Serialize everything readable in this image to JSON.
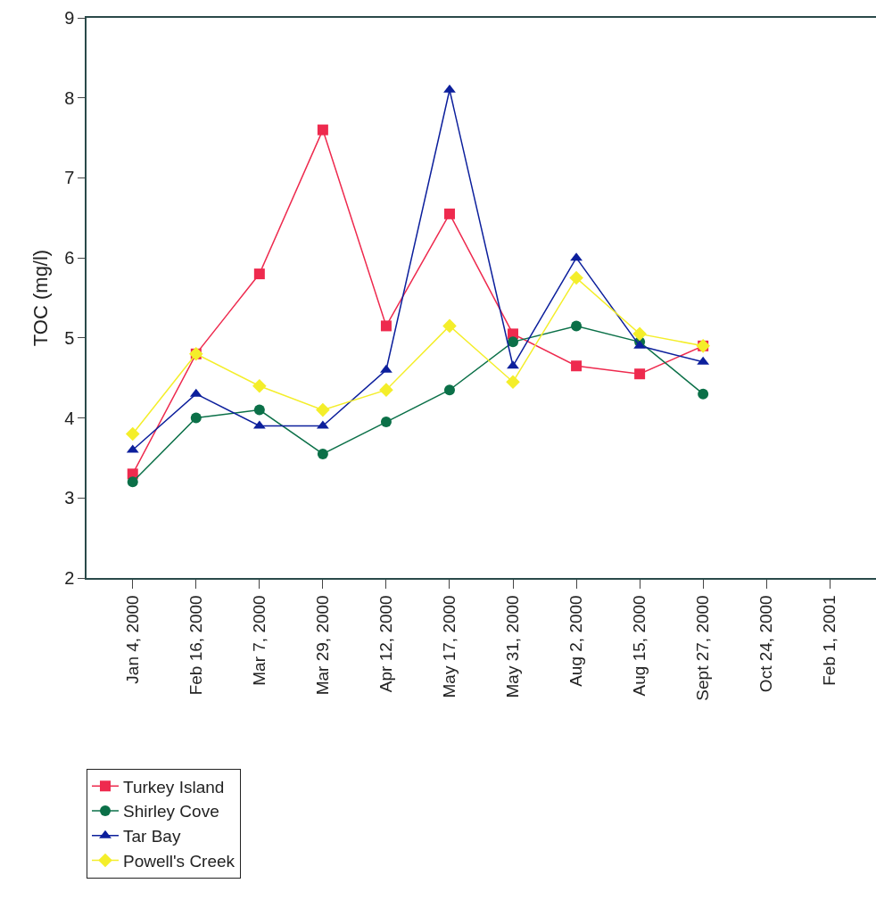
{
  "chart_data": {
    "type": "line",
    "ylabel": "TOC (mg/l)",
    "categories": [
      "Jan 4, 2000",
      "Feb 16, 2000",
      "Mar 7, 2000",
      "Mar 29, 2000",
      "Apr 12, 2000",
      "May 17, 2000",
      "May 31, 2000",
      "Aug 2, 2000",
      "Aug 15, 2000",
      "Sept 27, 2000",
      "Oct 24, 2000",
      "Feb 1, 2001"
    ],
    "series": [
      {
        "name": "Turkey Island",
        "color": "#ee2a4e",
        "marker": "square",
        "values": [
          3.3,
          4.8,
          5.8,
          7.6,
          5.15,
          6.55,
          5.05,
          4.65,
          4.55,
          4.9,
          null,
          null
        ]
      },
      {
        "name": "Shirley Cove",
        "color": "#0b7048",
        "marker": "circle",
        "values": [
          3.2,
          4.0,
          4.1,
          3.55,
          3.95,
          4.35,
          4.95,
          5.15,
          4.95,
          4.3,
          null,
          null
        ]
      },
      {
        "name": "Tar Bay",
        "color": "#0c1f9c",
        "marker": "triangle",
        "values": [
          3.6,
          4.3,
          3.9,
          3.9,
          4.6,
          8.1,
          4.65,
          6.0,
          4.9,
          4.7,
          null,
          null
        ]
      },
      {
        "name": "Powell's Creek",
        "color": "#f4ee2a",
        "marker": "diamond",
        "values": [
          3.8,
          4.8,
          4.4,
          4.1,
          4.35,
          5.15,
          4.45,
          5.75,
          5.05,
          4.9,
          null,
          null
        ]
      }
    ],
    "ylim": [
      2,
      9
    ],
    "yticks": [
      2,
      3,
      4,
      5,
      6,
      7,
      8,
      9
    ],
    "legend": "bottom left",
    "line_style": "solid"
  }
}
